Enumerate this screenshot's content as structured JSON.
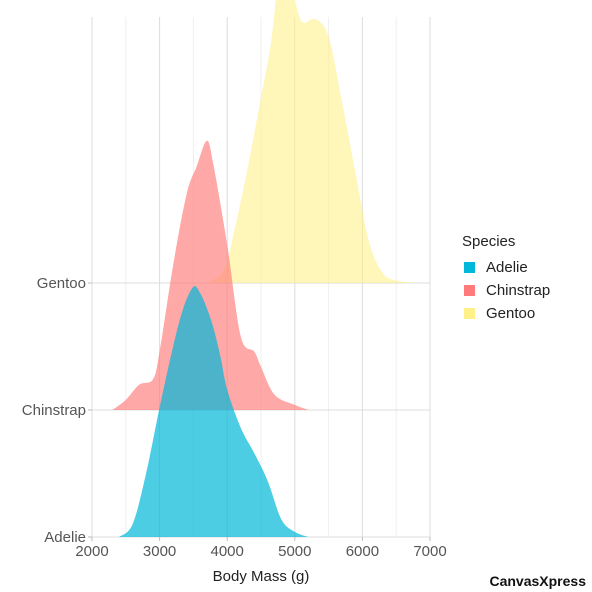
{
  "chart_data": {
    "type": "area",
    "subtype": "ridgeline-density",
    "xlabel": "Body Mass (g)",
    "xlim": [
      2000,
      7000
    ],
    "x_ticks": [
      2000,
      3000,
      4000,
      5000,
      6000,
      7000
    ],
    "y_categories": [
      "Adelie",
      "Chinstrap",
      "Gentoo"
    ],
    "grid": true,
    "legend": {
      "title": "Species",
      "position": "right"
    },
    "series": [
      {
        "name": "Adelie",
        "color": "#00B8D9",
        "baseline": "Adelie",
        "points": [
          [
            2400,
            0
          ],
          [
            2600,
            0.05
          ],
          [
            2800,
            0.25
          ],
          [
            3000,
            0.51
          ],
          [
            3200,
            0.75
          ],
          [
            3350,
            0.9
          ],
          [
            3500,
            0.985
          ],
          [
            3600,
            0.96
          ],
          [
            3700,
            0.9
          ],
          [
            3800,
            0.82
          ],
          [
            3900,
            0.71
          ],
          [
            4000,
            0.58
          ],
          [
            4200,
            0.43
          ],
          [
            4400,
            0.33
          ],
          [
            4600,
            0.22
          ],
          [
            4800,
            0.07
          ],
          [
            5000,
            0.02
          ],
          [
            5200,
            0
          ]
        ]
      },
      {
        "name": "Chinstrap",
        "color": "#FF7A7A",
        "baseline": "Chinstrap",
        "points": [
          [
            2300,
            0
          ],
          [
            2500,
            0.04
          ],
          [
            2700,
            0.1
          ],
          [
            2900,
            0.12
          ],
          [
            3000,
            0.23
          ],
          [
            3200,
            0.57
          ],
          [
            3400,
            0.85
          ],
          [
            3550,
            0.96
          ],
          [
            3700,
            1.06
          ],
          [
            3800,
            0.96
          ],
          [
            4000,
            0.65
          ],
          [
            4200,
            0.29
          ],
          [
            4400,
            0.23
          ],
          [
            4500,
            0.17
          ],
          [
            4700,
            0.06
          ],
          [
            5000,
            0.02
          ],
          [
            5200,
            0
          ]
        ]
      },
      {
        "name": "Gentoo",
        "color": "#FFF08A",
        "baseline": "Gentoo",
        "points": [
          [
            3700,
            0
          ],
          [
            3950,
            0.05
          ],
          [
            4100,
            0.2
          ],
          [
            4300,
            0.45
          ],
          [
            4500,
            0.73
          ],
          [
            4650,
            0.95
          ],
          [
            4800,
            1.28
          ],
          [
            4950,
            1.17
          ],
          [
            5100,
            1.03
          ],
          [
            5300,
            1.04
          ],
          [
            5500,
            0.97
          ],
          [
            5700,
            0.71
          ],
          [
            5900,
            0.43
          ],
          [
            6100,
            0.16
          ],
          [
            6300,
            0.04
          ],
          [
            6500,
            0.01
          ],
          [
            6800,
            0
          ]
        ]
      }
    ]
  },
  "watermark": "CanvasXpress"
}
